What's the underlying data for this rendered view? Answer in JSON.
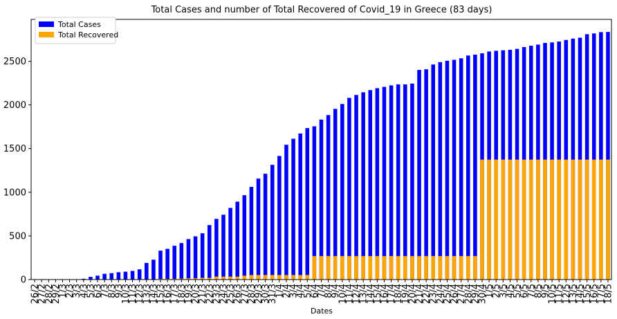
{
  "chart_data": {
    "type": "bar",
    "stacked": false,
    "title": "Total Cases and number of Total Recovered of Covid_19 in Greece (83 days)",
    "xlabel": "Dates",
    "ylabel": "",
    "ylim": [
      0,
      2980
    ],
    "yticks": [
      0,
      500,
      1000,
      1500,
      2000,
      2500
    ],
    "grid": false,
    "legend_position": "top-left",
    "categories": [
      "26/2",
      "27/2",
      "28/2",
      "29/2",
      "1/3",
      "2/3",
      "3/3",
      "4/3",
      "5/3",
      "6/3",
      "7/3",
      "8/3",
      "9/3",
      "10/3",
      "11/3",
      "12/3",
      "13/3",
      "14/3",
      "15/3",
      "16/3",
      "17/3",
      "18/3",
      "19/3",
      "20/3",
      "21/3",
      "22/3",
      "23/3",
      "24/3",
      "25/3",
      "26/3",
      "27/3",
      "28/3",
      "29/3",
      "30/3",
      "31/3",
      "1/4",
      "2/4",
      "3/4",
      "4/4",
      "5/4",
      "6/4",
      "7/4",
      "8/4",
      "9/4",
      "10/4",
      "11/4",
      "12/4",
      "13/4",
      "14/4",
      "15/4",
      "16/4",
      "17/4",
      "18/4",
      "19/4",
      "20/4",
      "21/4",
      "22/4",
      "23/4",
      "24/4",
      "25/4",
      "26/4",
      "27/4",
      "28/4",
      "29/4",
      "30/4",
      "1/5",
      "2/5",
      "3/5",
      "4/5",
      "5/5",
      "6/5",
      "7/5",
      "8/5",
      "9/5",
      "10/5",
      "11/5",
      "12/5",
      "13/5",
      "14/5",
      "15/5",
      "16/5",
      "17/5",
      "18/5"
    ],
    "series": [
      {
        "name": "Total Cases",
        "color": "#0000ff",
        "values": [
          1,
          1,
          3,
          4,
          4,
          4,
          4,
          9,
          31,
          45,
          66,
          73,
          84,
          90,
          99,
          117,
          190,
          228,
          331,
          352,
          387,
          418,
          464,
          495,
          530,
          624,
          695,
          743,
          821,
          892,
          966,
          1061,
          1156,
          1212,
          1314,
          1415,
          1544,
          1613,
          1673,
          1735,
          1755,
          1832,
          1884,
          1955,
          2011,
          2081,
          2114,
          2145,
          2170,
          2192,
          2207,
          2224,
          2235,
          2235,
          2245,
          2401,
          2408,
          2463,
          2490,
          2506,
          2517,
          2534,
          2566,
          2576,
          2591,
          2612,
          2620,
          2626,
          2632,
          2642,
          2663,
          2678,
          2691,
          2710,
          2716,
          2726,
          2744,
          2760,
          2770,
          2810,
          2819,
          2834,
          2836
        ]
      },
      {
        "name": "Total Recovered",
        "color": "#ffa500",
        "values": [
          0,
          0,
          0,
          0,
          0,
          0,
          0,
          0,
          0,
          0,
          0,
          0,
          0,
          0,
          0,
          0,
          0,
          0,
          8,
          8,
          8,
          10,
          15,
          15,
          19,
          19,
          34,
          34,
          34,
          34,
          45,
          52,
          52,
          52,
          52,
          52,
          52,
          52,
          52,
          52,
          269,
          269,
          269,
          269,
          269,
          269,
          269,
          269,
          269,
          269,
          269,
          269,
          269,
          269,
          269,
          269,
          269,
          269,
          269,
          269,
          269,
          269,
          269,
          269,
          1374,
          1374,
          1374,
          1374,
          1374,
          1374,
          1374,
          1374,
          1374,
          1374,
          1374,
          1374,
          1374,
          1374,
          1374,
          1374,
          1374,
          1374,
          1374
        ]
      }
    ]
  }
}
